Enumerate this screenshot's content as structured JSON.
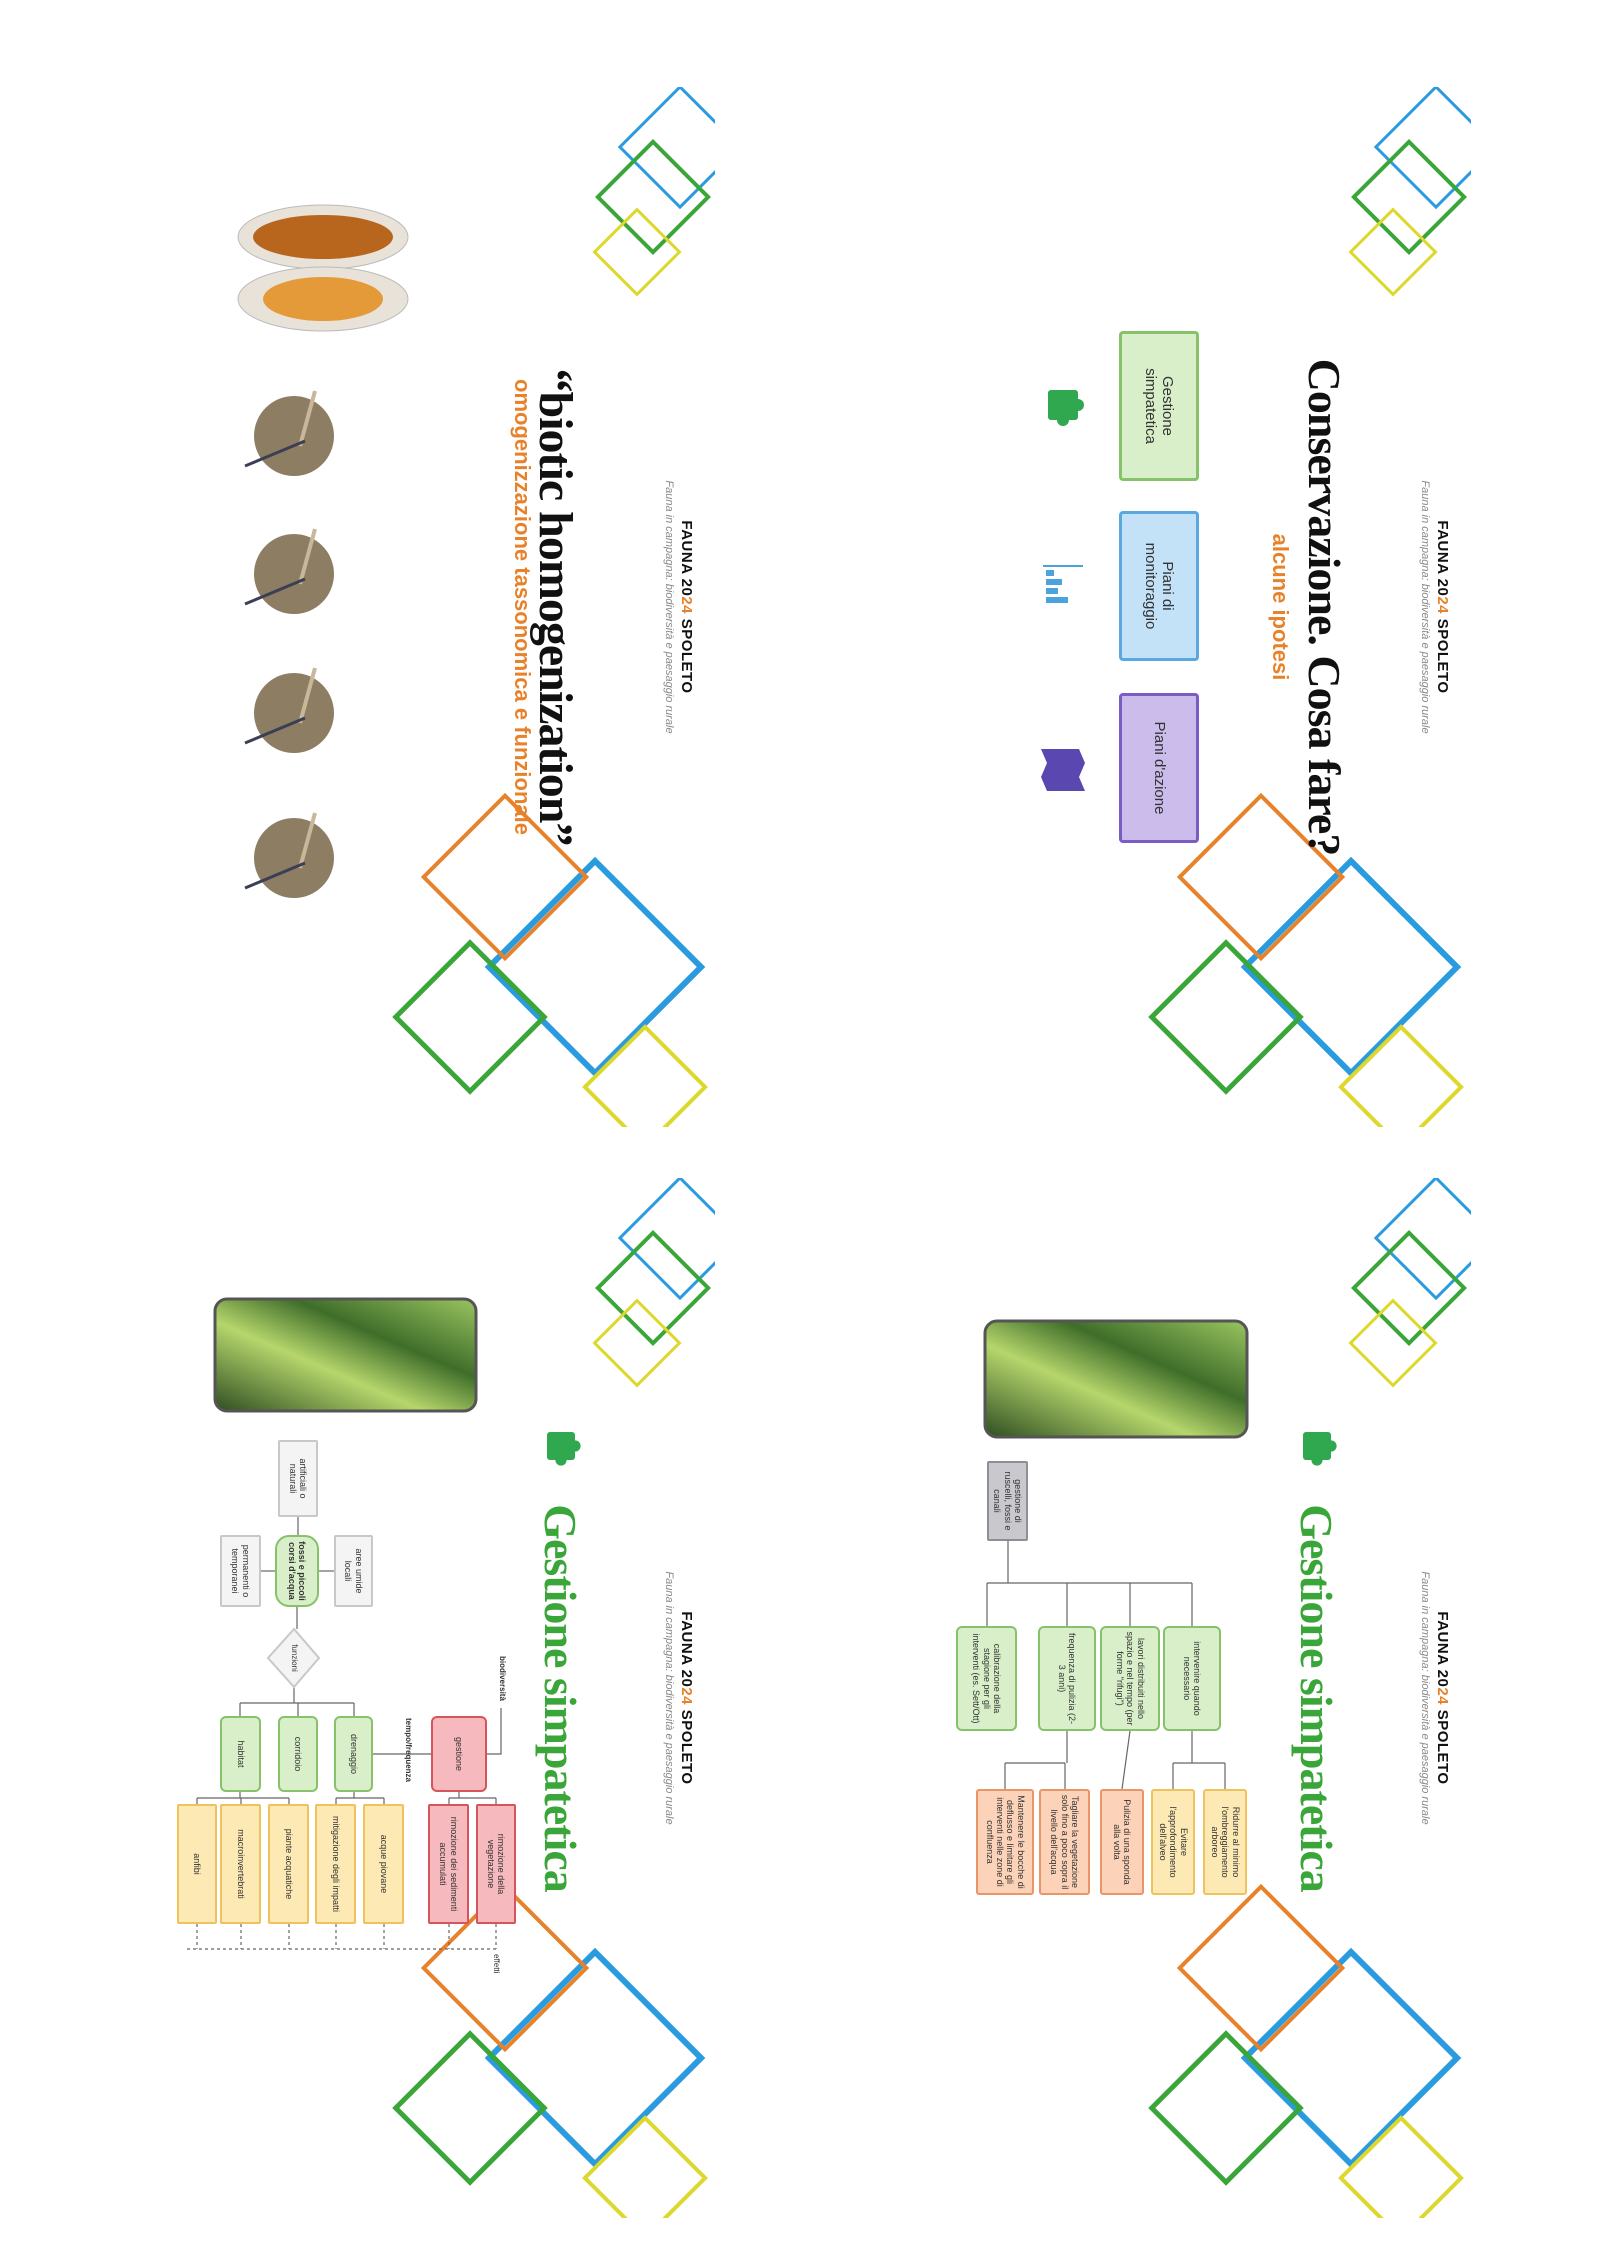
{
  "header": {
    "brand_start": "FAUNA 20",
    "brand_accent": "24",
    "brand_end": " SPOLETO",
    "tagline": "Fauna in campagna: biodiversità e paesaggio rurale"
  },
  "slides": [
    {
      "title": "Conservazione. Cosa fare?",
      "subtitle": "alcune ipotesi",
      "options": [
        "Gestione simpatetica",
        "Piani di monitoraggio",
        "Piani d'azione"
      ]
    },
    {
      "title": "“biotic homogenization”",
      "subtitle": "omogenizzazione tassonomica e funzionale"
    },
    {
      "title": "Gestione simpatetica",
      "root": "gestione di ruscelli, fossi e canali",
      "practices": [
        "intervenire quando necessario",
        "lavori distribuiti nello spazio e nel tempo (per forme \"rifugi\")",
        "frequenza di pulizia (2-3 anni)",
        "calibrazione della stagione per gli interventi (es. Sett/Ott)"
      ],
      "actions": [
        "Ridurre al minimo l'ombreggiamento arboreo",
        "Evitare l'approfondimento dell'alveo",
        "Pulizia di una sponda alla volta",
        "Tagliare la vegetazione solo fino a poco sopra il livello dell'acqua",
        "Mantenere le bocche di deflusso e limitare gli interventi nelle zone di confluenza"
      ]
    },
    {
      "title": "Gestione simpatetica",
      "types": [
        "artificiali o naturali",
        "aree umide locali",
        "permanenti o temporanei"
      ],
      "center": "fossi e piccoli corsi d'acqua",
      "function_label": "funzioni",
      "functions": [
        "drenaggio",
        "corridoio",
        "habitat"
      ],
      "management": "gestione",
      "management_notes": [
        "biodiversità",
        "tempo/frequenza"
      ],
      "effects_label": "effetti",
      "benefits": [
        "acque piovane",
        "mitigazione degli impatti",
        "piante acquatiche",
        "macroinvertebrati",
        "anfibi"
      ],
      "interventions": [
        "rimozione della vegetazione",
        "rimozione dei sedimenti accumulati"
      ]
    }
  ]
}
